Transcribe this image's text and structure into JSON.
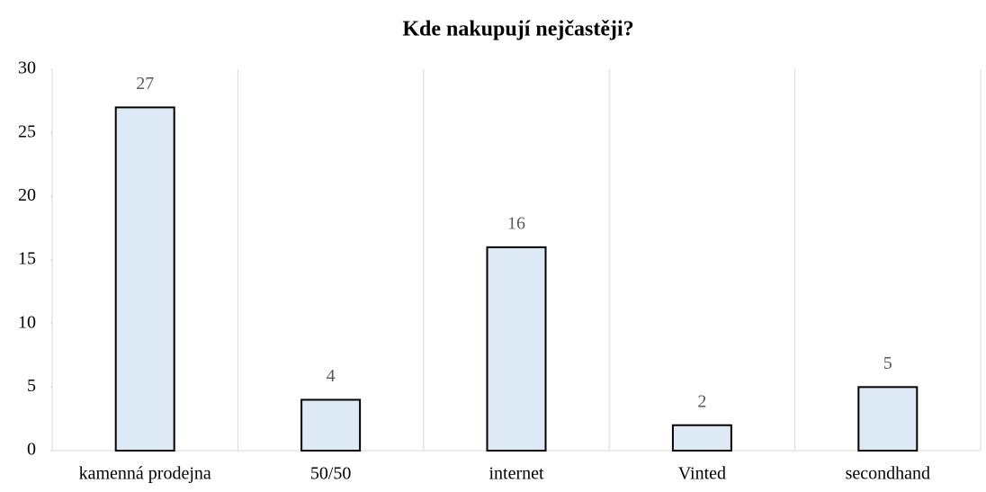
{
  "chart_data": {
    "type": "bar",
    "title": "Kde nakupují nejčastěji?",
    "categories": [
      "kamenná prodejna",
      "50/50",
      "internet",
      "Vinted",
      "secondhand"
    ],
    "values": [
      27,
      4,
      16,
      2,
      5
    ],
    "color": "#dde9f5",
    "ylim": [
      0,
      30
    ],
    "yticks": [
      0,
      5,
      10,
      15,
      20,
      25,
      30
    ]
  }
}
